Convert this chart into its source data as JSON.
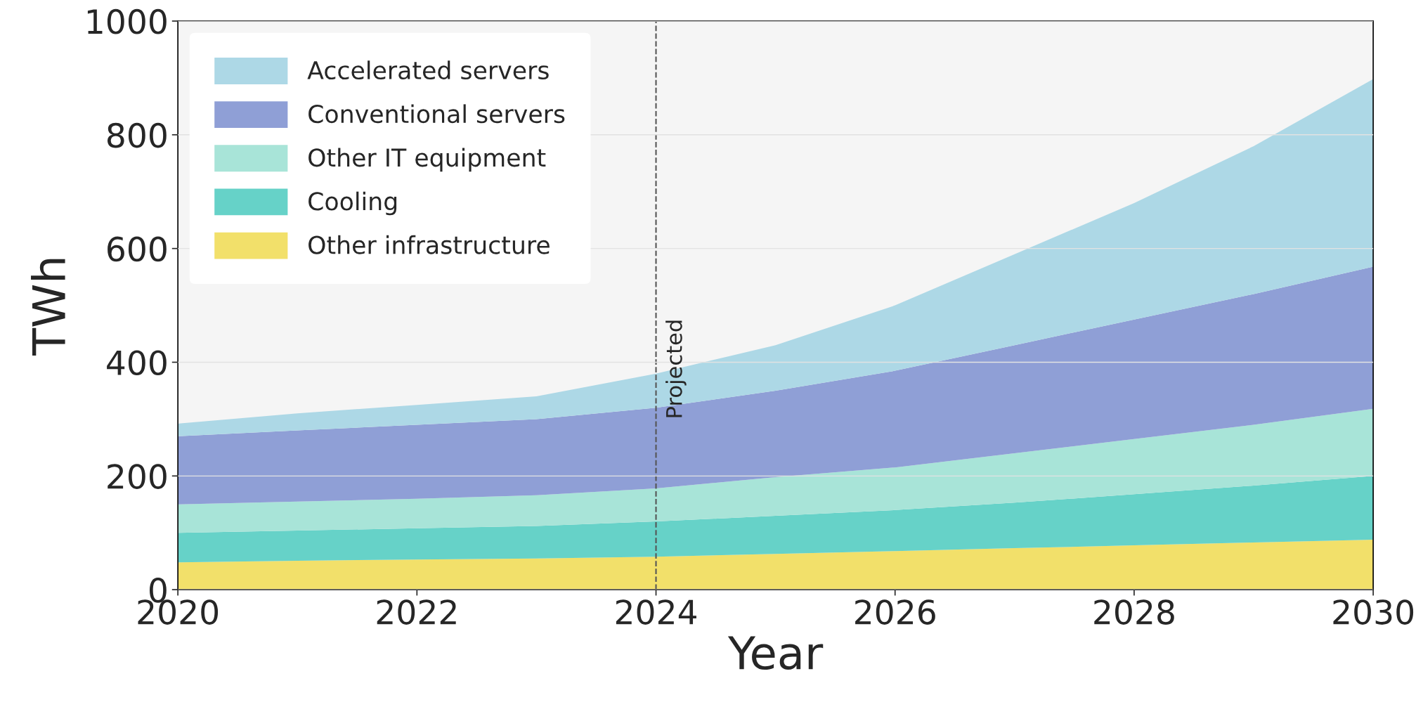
{
  "chart_data": {
    "type": "area",
    "stacked": true,
    "xlabel": "Year",
    "ylabel": "TWh",
    "x": [
      2020,
      2021,
      2022,
      2023,
      2024,
      2025,
      2026,
      2027,
      2028,
      2029,
      2030
    ],
    "series": [
      {
        "name": "Other infrastructure",
        "color": "#f2e06a",
        "values": [
          48,
          51,
          53,
          55,
          58,
          63,
          68,
          73,
          78,
          83,
          88
        ]
      },
      {
        "name": "Cooling",
        "color": "#66d2c8",
        "values": [
          52,
          53,
          55,
          57,
          62,
          67,
          72,
          80,
          90,
          100,
          112
        ]
      },
      {
        "name": "Other IT equipment",
        "color": "#a8e4d8",
        "values": [
          50,
          51,
          52,
          54,
          58,
          68,
          75,
          87,
          97,
          107,
          118
        ]
      },
      {
        "name": "Conventional servers",
        "color": "#8f9fd6",
        "values": [
          120,
          125,
          130,
          134,
          142,
          152,
          170,
          190,
          210,
          230,
          250
        ]
      },
      {
        "name": "Accelerated servers",
        "color": "#add8e6",
        "values": [
          22,
          30,
          35,
          40,
          60,
          80,
          115,
          160,
          205,
          260,
          330
        ]
      }
    ],
    "xlim": [
      2020,
      2030
    ],
    "xticks": [
      2020,
      2022,
      2024,
      2026,
      2028,
      2030
    ],
    "ylim": [
      0,
      1000
    ],
    "yticks": [
      0,
      200,
      400,
      600,
      800,
      1000
    ],
    "ref_lines": [
      {
        "axis": "x",
        "value": 2024,
        "label": "Projected",
        "color": "#555555",
        "line_style": "dashed"
      }
    ],
    "grid": "y",
    "legend": "top left"
  }
}
